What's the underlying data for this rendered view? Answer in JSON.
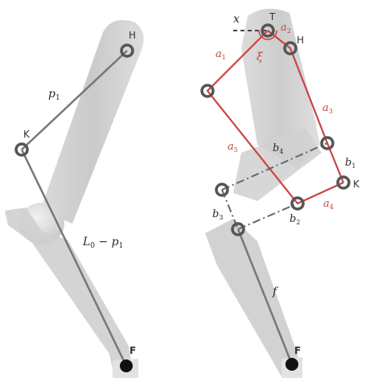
{
  "colors": {
    "limb": "#c9c9c9",
    "limb_dark": "#b6b6b6",
    "line": "#777777",
    "red": "#cc4444",
    "dash": "#666666",
    "joint": "#555555",
    "foot": "#111111"
  },
  "left": {
    "labels": {
      "hip": "H",
      "knee": "K",
      "foot": "F",
      "p1": "p",
      "p1_sub": "1",
      "l0_minus_p1": "L",
      "l0_sub": "0",
      "l0_tail": " − p",
      "l0_tail_sub": "1"
    }
  },
  "right": {
    "labels": {
      "top": "T",
      "hip": "H",
      "knee": "K",
      "foot": "F",
      "x": "x",
      "xi": "ξ",
      "a1": "a",
      "a1_sub": "1",
      "a2": "a",
      "a2_sub": "2",
      "a3": "a",
      "a3_sub": "3",
      "a4": "a",
      "a4_sub": "4",
      "a5": "a",
      "a5_sub": "5",
      "b1": "b",
      "b1_sub": "1",
      "b2": "b",
      "b2_sub": "2",
      "b3": "b",
      "b3_sub": "3",
      "b4": "b",
      "b4_sub": "4",
      "f": "f"
    }
  }
}
